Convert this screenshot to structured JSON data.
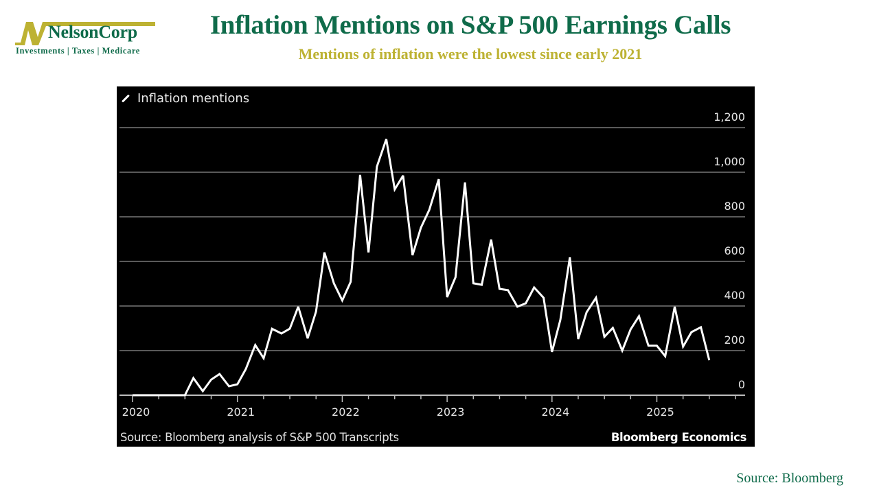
{
  "brand": {
    "name": "NelsonCorp",
    "tagline": "Investments | Taxes | Medicare",
    "colors": {
      "green": "#0f6b4a",
      "gold": "#bdb233"
    }
  },
  "header": {
    "title": "Inflation Mentions on S&P 500 Earnings Calls",
    "subtitle": "Mentions of inflation were the lowest since early 2021"
  },
  "chart_panel": {
    "legend_icon": "line-icon",
    "legend_label": "Inflation mentions",
    "source_note": "Source: Bloomberg analysis of S&P 500 Transcripts",
    "brand_note": "Bloomberg Economics"
  },
  "footer": {
    "source": "Source: Bloomberg"
  },
  "chart_data": {
    "type": "line",
    "title": "Inflation mentions",
    "xlabel": "",
    "ylabel": "",
    "ylim": [
      0,
      1200
    ],
    "yticks": [
      0,
      200,
      400,
      600,
      800,
      1000,
      1200
    ],
    "ytick_labels": [
      "0",
      "200",
      "400",
      "600",
      "800",
      "1,000",
      "1,200"
    ],
    "xlim": [
      2020.0,
      2025.9
    ],
    "xticks": [
      2020,
      2021,
      2022,
      2023,
      2024,
      2025
    ],
    "xtick_labels": [
      "2020",
      "2021",
      "2022",
      "2023",
      "2024",
      "2025"
    ],
    "grid": true,
    "line_color": "#ffffff",
    "background": "#000000",
    "series": [
      {
        "name": "Inflation mentions",
        "x": [
          2020.0,
          2020.08,
          2020.17,
          2020.25,
          2020.33,
          2020.42,
          2020.5,
          2020.58,
          2020.67,
          2020.75,
          2020.83,
          2020.92,
          2021.0,
          2021.08,
          2021.17,
          2021.25,
          2021.33,
          2021.42,
          2021.5,
          2021.58,
          2021.67,
          2021.75,
          2021.83,
          2021.92,
          2022.0,
          2022.08,
          2022.17,
          2022.25,
          2022.33,
          2022.42,
          2022.5,
          2022.58,
          2022.67,
          2022.75,
          2022.83,
          2022.92,
          2023.0,
          2023.08,
          2023.17,
          2023.25,
          2023.33,
          2023.42,
          2023.5,
          2023.58,
          2023.67,
          2023.75,
          2023.83,
          2023.92,
          2024.0,
          2024.08,
          2024.17,
          2024.25,
          2024.33,
          2024.42,
          2024.5,
          2024.58,
          2024.67,
          2024.75,
          2024.83,
          2024.92,
          2025.0,
          2025.08,
          2025.17,
          2025.25,
          2025.33,
          2025.42,
          2025.5
        ],
        "values": [
          0,
          0,
          0,
          0,
          0,
          0,
          0,
          77,
          18,
          70,
          95,
          40,
          49,
          117,
          225,
          166,
          298,
          277,
          298,
          397,
          255,
          375,
          640,
          502,
          425,
          508,
          988,
          640,
          1025,
          1148,
          923,
          985,
          628,
          751,
          831,
          969,
          440,
          529,
          954,
          502,
          495,
          698,
          477,
          471,
          397,
          412,
          483,
          437,
          194,
          338,
          618,
          252,
          372,
          437,
          262,
          302,
          200,
          295,
          354,
          222,
          222,
          175,
          397,
          218,
          283,
          305,
          157
        ]
      }
    ]
  }
}
